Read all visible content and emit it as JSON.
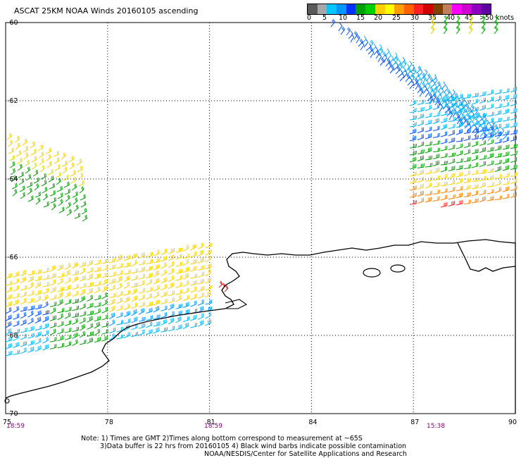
{
  "header": {
    "title": "ASCAT 25KM NOAA Winds 20160105 ascending"
  },
  "colorbar": {
    "labels": [
      "0",
      "5",
      "10",
      "15",
      "20",
      "25",
      "30",
      "35",
      "40",
      "45",
      ">50 knots"
    ],
    "colors": [
      "#5a5a5a",
      "#a8a8a8",
      "#00c8ff",
      "#0096ff",
      "#0032ff",
      "#00a000",
      "#00d000",
      "#ffd000",
      "#ffff00",
      "#ffa000",
      "#ff6000",
      "#ff2020",
      "#d00000",
      "#804000",
      "#c08060",
      "#ff00ff",
      "#d000d0",
      "#9000c0",
      "#6000a0"
    ]
  },
  "axes": {
    "y_labels": [
      "-60",
      "-62",
      "-64",
      "-66",
      "-68",
      "-70"
    ],
    "x_labels": [
      "75",
      "78",
      "81",
      "84",
      "87",
      "90"
    ],
    "time_labels": [
      "18:59",
      "18:59",
      "15:38"
    ]
  },
  "footer": {
    "line1": "Note: 1) Times are GMT 2)Times along bottom correspond to measurement at ~65S",
    "line2": "3)Data buffer is 22 hrs from 20160105 4) Black wind barbs indicate possible contamination",
    "line3": "NOAA/NESDIS/Center for Satellite Applications and Research"
  },
  "map": {
    "lon_range": [
      75,
      90
    ],
    "lat_range": [
      -70,
      -60
    ],
    "grid": "dotted",
    "coastline": "black",
    "swaths": [
      {
        "region": "northeast",
        "dominant_speed_knots": "5-20"
      },
      {
        "region": "east",
        "dominant_speed_knots": "15-35"
      },
      {
        "region": "west",
        "dominant_speed_knots": "15-25"
      },
      {
        "region": "southwest",
        "dominant_speed_knots": "5-30"
      }
    ]
  }
}
